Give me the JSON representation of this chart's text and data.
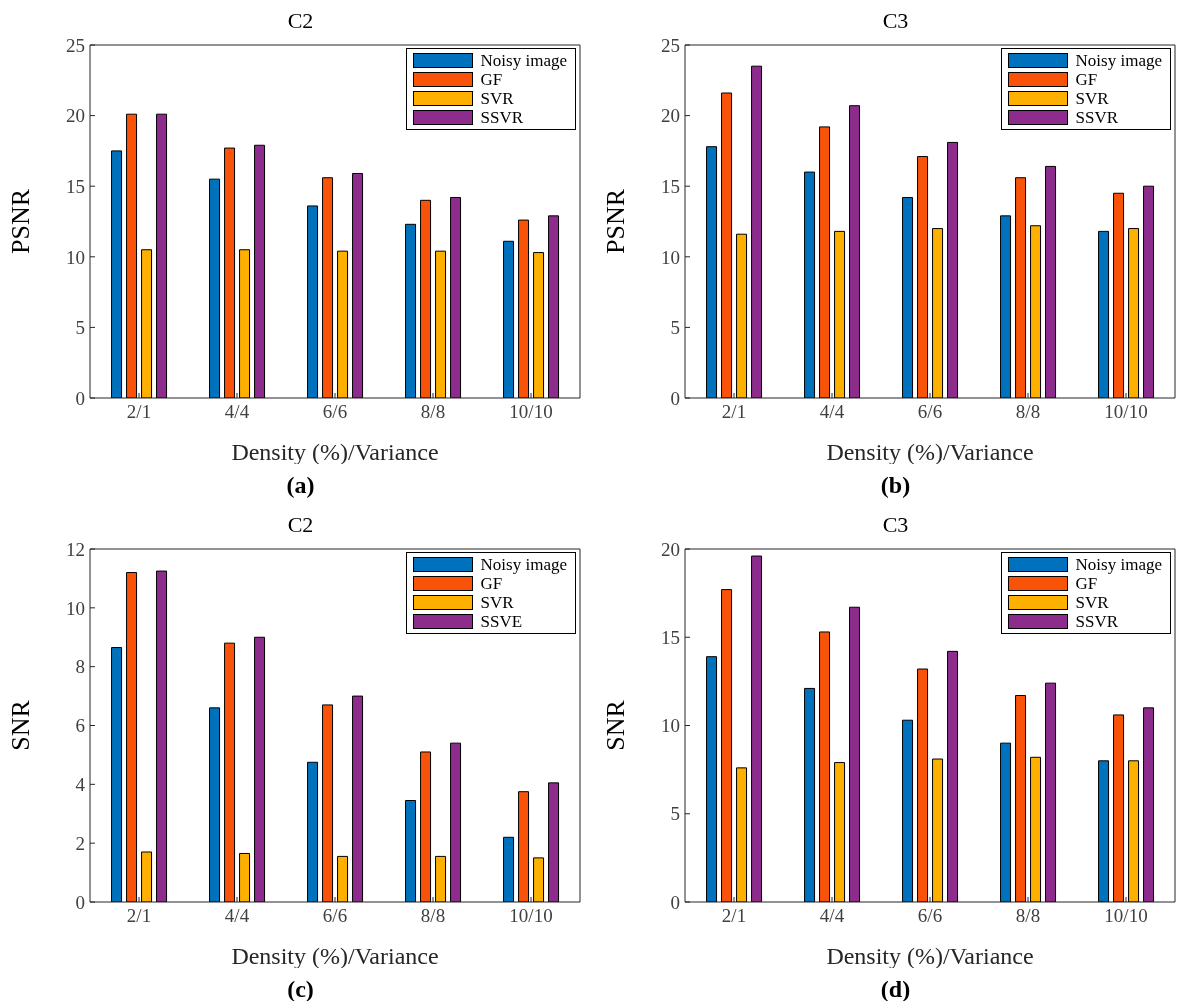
{
  "chart_data": [
    {
      "type": "bar",
      "title": "C2",
      "xlabel": "Density (%)/Variance",
      "ylabel": "PSNR",
      "categories": [
        "2/1",
        "4/4",
        "6/6",
        "8/8",
        "10/10"
      ],
      "ylim": [
        0,
        25
      ],
      "yticks": [
        0,
        5,
        10,
        15,
        20,
        25
      ],
      "legend": "top right",
      "annotations": [
        "(a)"
      ],
      "series": [
        {
          "name": "Noisy image",
          "color": "#0072bd",
          "values": [
            17.5,
            15.5,
            13.6,
            12.3,
            11.1
          ]
        },
        {
          "name": "GF",
          "color": "#f9530a",
          "values": [
            20.1,
            17.7,
            15.6,
            14.0,
            12.6
          ]
        },
        {
          "name": "SVR",
          "color": "#fdb000",
          "values": [
            10.5,
            10.5,
            10.4,
            10.4,
            10.3
          ]
        },
        {
          "name": "SSVR",
          "color": "#8e2c8e",
          "values": [
            20.1,
            17.9,
            15.9,
            14.2,
            12.9
          ]
        }
      ]
    },
    {
      "type": "bar",
      "title": "C3",
      "xlabel": "Density (%)/Variance",
      "ylabel": "PSNR",
      "categories": [
        "2/1",
        "4/4",
        "6/6",
        "8/8",
        "10/10"
      ],
      "ylim": [
        0,
        25
      ],
      "yticks": [
        0,
        5,
        10,
        15,
        20,
        25
      ],
      "legend": "top right",
      "annotations": [
        "(b)"
      ],
      "series": [
        {
          "name": "Noisy image",
          "color": "#0072bd",
          "values": [
            17.8,
            16.0,
            14.2,
            12.9,
            11.8
          ]
        },
        {
          "name": "GF",
          "color": "#f9530a",
          "values": [
            21.6,
            19.2,
            17.1,
            15.6,
            14.5
          ]
        },
        {
          "name": "SVR",
          "color": "#fdb000",
          "values": [
            11.6,
            11.8,
            12.0,
            12.2,
            12.0
          ]
        },
        {
          "name": "SSVR",
          "color": "#8e2c8e",
          "values": [
            23.5,
            20.7,
            18.1,
            16.4,
            15.0
          ]
        }
      ]
    },
    {
      "type": "bar",
      "title": "C2",
      "xlabel": "Density (%)/Variance",
      "ylabel": "SNR",
      "categories": [
        "2/1",
        "4/4",
        "6/6",
        "8/8",
        "10/10"
      ],
      "ylim": [
        0,
        12
      ],
      "yticks": [
        0,
        2,
        4,
        6,
        8,
        10,
        12
      ],
      "legend": "top right",
      "annotations": [
        "(c)"
      ],
      "series": [
        {
          "name": "Noisy image",
          "color": "#0072bd",
          "values": [
            8.65,
            6.6,
            4.75,
            3.45,
            2.2
          ]
        },
        {
          "name": "GF",
          "color": "#f9530a",
          "values": [
            11.2,
            8.8,
            6.7,
            5.1,
            3.75
          ]
        },
        {
          "name": "SVR",
          "color": "#fdb000",
          "values": [
            1.7,
            1.65,
            1.55,
            1.55,
            1.5
          ]
        },
        {
          "name": "SSVE",
          "color": "#8e2c8e",
          "values": [
            11.25,
            9.0,
            7.0,
            5.4,
            4.05
          ]
        }
      ]
    },
    {
      "type": "bar",
      "title": "C3",
      "xlabel": "Density (%)/Variance",
      "ylabel": "SNR",
      "categories": [
        "2/1",
        "4/4",
        "6/6",
        "8/8",
        "10/10"
      ],
      "ylim": [
        0,
        20
      ],
      "yticks": [
        0,
        5,
        10,
        15,
        20
      ],
      "legend": "top right",
      "annotations": [
        "(d)"
      ],
      "series": [
        {
          "name": "Noisy image",
          "color": "#0072bd",
          "values": [
            13.9,
            12.1,
            10.3,
            9.0,
            8.0
          ]
        },
        {
          "name": "GF",
          "color": "#f9530a",
          "values": [
            17.7,
            15.3,
            13.2,
            11.7,
            10.6
          ]
        },
        {
          "name": "SVR",
          "color": "#fdb000",
          "values": [
            7.6,
            7.9,
            8.1,
            8.2,
            8.0
          ]
        },
        {
          "name": "SSVR",
          "color": "#8e2c8e",
          "values": [
            19.6,
            16.7,
            14.2,
            12.4,
            11.0
          ]
        }
      ]
    }
  ]
}
